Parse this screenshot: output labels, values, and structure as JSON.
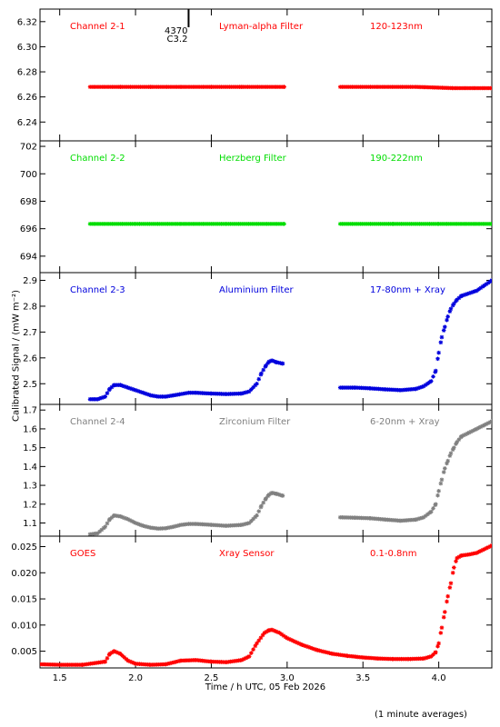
{
  "chart_data": {
    "type": "scatter",
    "x_axis": {
      "label": "Time / h UTC, 05 Feb 2026",
      "range": [
        1.37,
        4.35
      ],
      "ticks": [
        1.5,
        2.0,
        2.5,
        3.0,
        3.5,
        4.0
      ],
      "tick_labels": [
        "1.5",
        "2.0",
        "2.5",
        "3.0",
        "3.5",
        "4.0"
      ]
    },
    "y_axis_label": "Calibrated Signal / (mW m⁻²)",
    "footnote": "(1 minute averages)",
    "marker": "*",
    "grid": false,
    "panels": [
      {
        "labels": [
          "Channel 2-1",
          "Lyman-alpha Filter",
          "120-123nm"
        ],
        "color": "#ff0000",
        "ylim": [
          6.225,
          6.33
        ],
        "yticks": [
          6.24,
          6.26,
          6.28,
          6.3,
          6.32
        ],
        "ytick_labels": [
          "6.24",
          "6.26",
          "6.28",
          "6.30",
          "6.32"
        ],
        "annotation": {
          "lines": [
            "4370",
            "C3.2"
          ],
          "x": 2.35
        },
        "segments": [
          {
            "x": [
              1.7,
              1.9,
              2.1,
              2.3,
              2.5,
              2.7,
              2.98
            ],
            "y": [
              6.268,
              6.268,
              6.268,
              6.268,
              6.268,
              6.268,
              6.268
            ]
          },
          {
            "x": [
              3.35,
              3.6,
              3.85,
              4.1,
              4.35
            ],
            "y": [
              6.268,
              6.268,
              6.268,
              6.267,
              6.267
            ]
          }
        ]
      },
      {
        "labels": [
          "Channel 2-2",
          "Herzberg Filter",
          "190-222nm"
        ],
        "color": "#00dd00",
        "ylim": [
          692.8,
          702.4
        ],
        "yticks": [
          694,
          696,
          698,
          700,
          702
        ],
        "ytick_labels": [
          "694",
          "696",
          "698",
          "700",
          "702"
        ],
        "segments": [
          {
            "x": [
              1.7,
              2.0,
              2.3,
              2.6,
              2.98
            ],
            "y": [
              696.35,
              696.35,
              696.35,
              696.35,
              696.35
            ]
          },
          {
            "x": [
              3.35,
              3.7,
              4.0,
              4.35
            ],
            "y": [
              696.35,
              696.35,
              696.35,
              696.35
            ]
          }
        ]
      },
      {
        "labels": [
          "Channel 2-3",
          "Aluminium Filter",
          "17-80nm + Xray"
        ],
        "color": "#0000dd",
        "ylim": [
          2.42,
          2.93
        ],
        "yticks": [
          2.5,
          2.6,
          2.7,
          2.8,
          2.9
        ],
        "ytick_labels": [
          "2.5",
          "2.6",
          "2.7",
          "2.8",
          "2.9"
        ],
        "segments": [
          {
            "x": [
              1.7,
              1.75,
              1.8,
              1.83,
              1.86,
              1.9,
              1.95,
              2.0,
              2.05,
              2.1,
              2.15,
              2.2,
              2.25,
              2.3,
              2.35,
              2.4,
              2.5,
              2.6,
              2.7,
              2.75,
              2.8,
              2.83,
              2.86,
              2.88,
              2.9,
              2.93,
              2.97
            ],
            "y": [
              2.44,
              2.44,
              2.45,
              2.48,
              2.495,
              2.495,
              2.485,
              2.475,
              2.465,
              2.455,
              2.45,
              2.45,
              2.455,
              2.46,
              2.465,
              2.465,
              2.462,
              2.46,
              2.462,
              2.47,
              2.5,
              2.54,
              2.57,
              2.585,
              2.59,
              2.583,
              2.578
            ]
          },
          {
            "x": [
              3.35,
              3.45,
              3.55,
              3.65,
              3.75,
              3.85,
              3.9,
              3.95,
              3.98,
              4.0,
              4.02,
              4.04,
              4.06,
              4.08,
              4.1,
              4.12,
              4.15,
              4.2,
              4.25,
              4.3,
              4.35
            ],
            "y": [
              2.485,
              2.485,
              2.482,
              2.478,
              2.475,
              2.48,
              2.49,
              2.51,
              2.55,
              2.62,
              2.68,
              2.72,
              2.76,
              2.79,
              2.81,
              2.825,
              2.84,
              2.85,
              2.86,
              2.88,
              2.9
            ]
          }
        ]
      },
      {
        "labels": [
          "Channel 2-4",
          "Zirconium Filter",
          "6-20nm + Xray"
        ],
        "color": "#808080",
        "ylim": [
          1.03,
          1.73
        ],
        "yticks": [
          1.1,
          1.2,
          1.3,
          1.4,
          1.5,
          1.6,
          1.7
        ],
        "ytick_labels": [
          "1.1",
          "1.2",
          "1.3",
          "1.4",
          "1.5",
          "1.6",
          "1.7"
        ],
        "segments": [
          {
            "x": [
              1.7,
              1.75,
              1.8,
              1.83,
              1.86,
              1.9,
              1.95,
              2.0,
              2.05,
              2.1,
              2.15,
              2.2,
              2.25,
              2.3,
              2.35,
              2.4,
              2.5,
              2.6,
              2.7,
              2.75,
              2.8,
              2.83,
              2.86,
              2.88,
              2.9,
              2.93,
              2.97
            ],
            "y": [
              1.04,
              1.045,
              1.08,
              1.12,
              1.14,
              1.135,
              1.12,
              1.1,
              1.085,
              1.075,
              1.07,
              1.072,
              1.08,
              1.09,
              1.095,
              1.095,
              1.09,
              1.085,
              1.09,
              1.1,
              1.14,
              1.19,
              1.23,
              1.25,
              1.26,
              1.255,
              1.245
            ]
          },
          {
            "x": [
              3.35,
              3.45,
              3.55,
              3.65,
              3.75,
              3.85,
              3.9,
              3.95,
              3.98,
              4.0,
              4.02,
              4.04,
              4.06,
              4.08,
              4.1,
              4.12,
              4.15,
              4.2,
              4.25,
              4.3,
              4.35
            ],
            "y": [
              1.13,
              1.128,
              1.125,
              1.118,
              1.112,
              1.118,
              1.13,
              1.16,
              1.2,
              1.27,
              1.33,
              1.39,
              1.43,
              1.47,
              1.5,
              1.53,
              1.56,
              1.58,
              1.6,
              1.62,
              1.64
            ]
          }
        ]
      },
      {
        "labels": [
          "GOES",
          "Xray Sensor",
          "0.1-0.8nm"
        ],
        "color": "#ff0000",
        "ylim": [
          0.0018,
          0.027
        ],
        "yticks": [
          0.005,
          0.01,
          0.015,
          0.02,
          0.025
        ],
        "ytick_labels": [
          "0.005",
          "0.010",
          "0.015",
          "0.020",
          "0.025"
        ],
        "segments": [
          {
            "x": [
              1.37,
              1.5,
              1.65,
              1.8,
              1.83,
              1.86,
              1.9,
              1.95,
              2.0,
              2.1,
              2.2,
              2.3,
              2.4,
              2.5,
              2.6,
              2.7,
              2.75,
              2.8,
              2.85,
              2.88,
              2.9,
              2.95,
              3.0,
              3.1,
              3.2,
              3.3,
              3.4,
              3.5,
              3.6,
              3.7,
              3.8,
              3.9,
              3.95,
              3.98,
              4.0,
              4.02,
              4.04,
              4.06,
              4.08,
              4.1,
              4.12,
              4.15,
              4.2,
              4.25,
              4.3,
              4.35
            ],
            "y": [
              0.0025,
              0.0024,
              0.0024,
              0.003,
              0.0045,
              0.005,
              0.0045,
              0.0032,
              0.0026,
              0.0024,
              0.0025,
              0.0032,
              0.0033,
              0.003,
              0.0029,
              0.0033,
              0.004,
              0.0065,
              0.0085,
              0.009,
              0.0091,
              0.0085,
              0.0075,
              0.0062,
              0.0052,
              0.0045,
              0.0041,
              0.0038,
              0.0036,
              0.0035,
              0.0035,
              0.0036,
              0.004,
              0.0048,
              0.0065,
              0.0095,
              0.0125,
              0.0155,
              0.018,
              0.021,
              0.0228,
              0.0233,
              0.0235,
              0.0238,
              0.0245,
              0.0252
            ]
          }
        ]
      }
    ]
  }
}
